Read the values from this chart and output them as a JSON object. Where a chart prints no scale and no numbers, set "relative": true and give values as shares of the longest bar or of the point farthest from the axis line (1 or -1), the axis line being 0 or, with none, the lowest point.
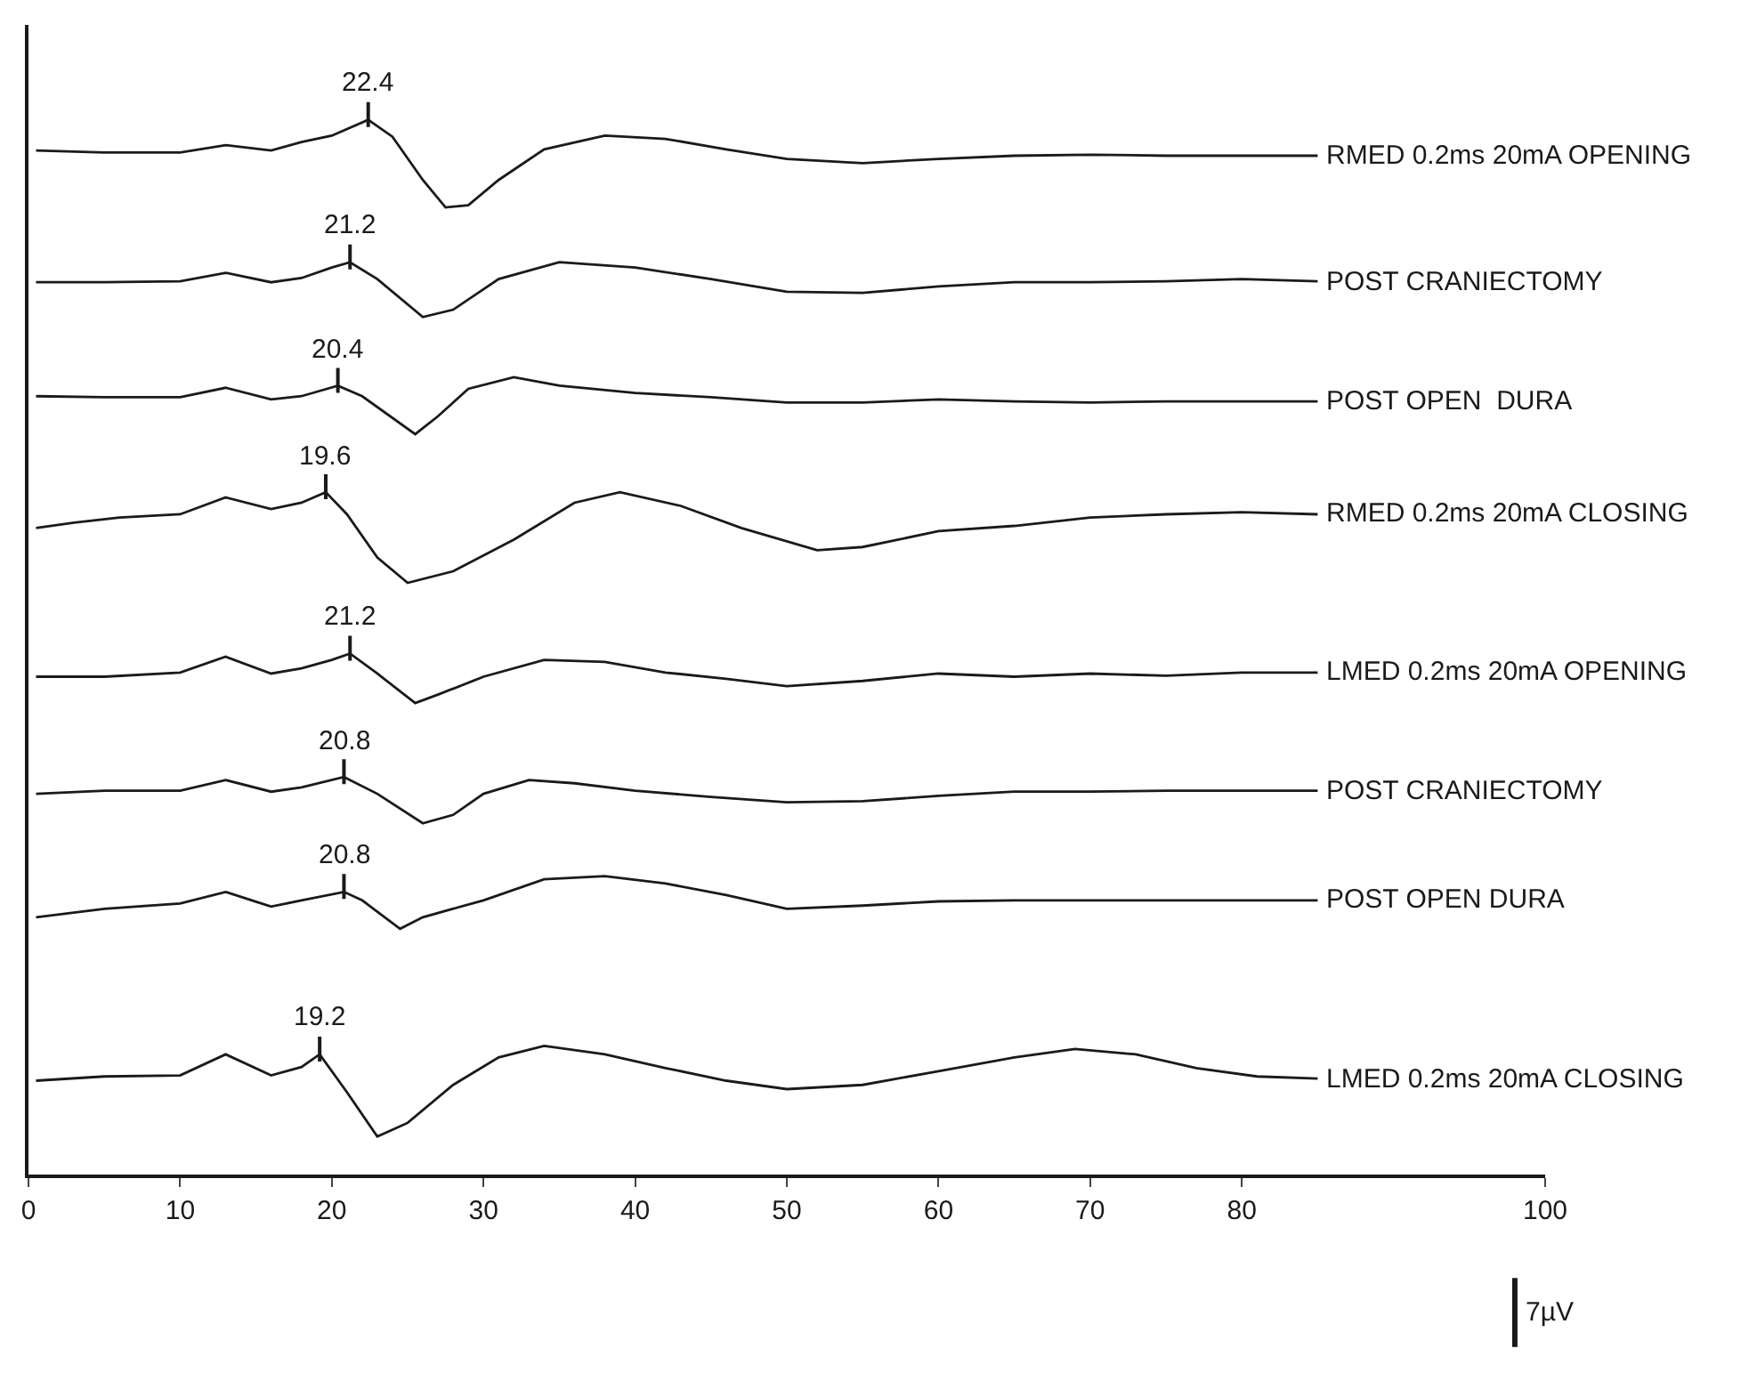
{
  "chart_data": {
    "type": "line",
    "relative": true,
    "xlim": [
      0,
      100
    ],
    "xticks": [
      0,
      10,
      20,
      30,
      40,
      50,
      60,
      70,
      80,
      100
    ],
    "line_style": "solid",
    "series": [
      {
        "name": "RMED 0.2ms 20mA OPENING",
        "color": "#1a1a1a",
        "x": [
          0.5,
          5,
          10,
          13,
          16,
          18,
          20,
          22.4,
          24,
          26,
          27.5,
          29,
          31,
          34,
          38,
          42,
          46,
          50,
          55,
          60,
          65,
          70,
          75,
          80,
          85
        ],
        "values": [
          0.971,
          0.969,
          0.969,
          0.976,
          0.971,
          0.979,
          0.985,
          1,
          0.984,
          0.943,
          0.917,
          0.919,
          0.943,
          0.972,
          0.985,
          0.982,
          0.972,
          0.963,
          0.959,
          0.963,
          0.966,
          0.967,
          0.966,
          0.966,
          0.966
        ]
      },
      {
        "name": "POST CRANIECTOMY",
        "color": "#1a1a1a",
        "x": [
          0.5,
          5,
          10,
          13,
          16,
          18,
          20,
          21.2,
          23,
          26,
          28,
          31,
          35,
          40,
          45,
          50,
          55,
          60,
          65,
          70,
          75,
          80,
          85
        ],
        "values": [
          0.846,
          0.846,
          0.847,
          0.855,
          0.846,
          0.85,
          0.86,
          0.865,
          0.849,
          0.813,
          0.82,
          0.849,
          0.865,
          0.86,
          0.849,
          0.837,
          0.836,
          0.842,
          0.846,
          0.846,
          0.847,
          0.849,
          0.847
        ]
      },
      {
        "name": "POST OPEN  DURA",
        "color": "#1a1a1a",
        "x": [
          0.5,
          5,
          10,
          13,
          16,
          18,
          20.4,
          22,
          25.5,
          27,
          29,
          32,
          35,
          40,
          45,
          50,
          55,
          60,
          65,
          70,
          75,
          80,
          85
        ],
        "values": [
          0.738,
          0.737,
          0.737,
          0.746,
          0.735,
          0.738,
          0.748,
          0.738,
          0.702,
          0.719,
          0.745,
          0.756,
          0.748,
          0.741,
          0.737,
          0.732,
          0.732,
          0.735,
          0.733,
          0.732,
          0.733,
          0.733,
          0.733
        ]
      },
      {
        "name": "RMED 0.2ms 20mA CLOSING",
        "color": "#1a1a1a",
        "x": [
          0.5,
          3,
          6,
          10,
          13,
          16,
          18,
          19.6,
          21,
          23,
          25,
          28,
          32,
          36,
          39,
          43,
          47,
          52,
          55,
          60,
          65,
          70,
          75,
          80,
          85
        ],
        "values": [
          0.613,
          0.618,
          0.623,
          0.626,
          0.642,
          0.631,
          0.637,
          0.647,
          0.626,
          0.585,
          0.561,
          0.572,
          0.602,
          0.637,
          0.647,
          0.634,
          0.613,
          0.592,
          0.595,
          0.61,
          0.615,
          0.623,
          0.626,
          0.628,
          0.626
        ]
      },
      {
        "name": "LMED 0.2ms 20mA OPENING",
        "color": "#1a1a1a",
        "x": [
          0.5,
          5,
          10,
          13,
          16,
          18,
          20,
          21.2,
          23,
          25.5,
          27,
          30,
          34,
          38,
          42,
          46,
          50,
          55,
          60,
          65,
          70,
          75,
          80,
          85
        ],
        "values": [
          0.472,
          0.472,
          0.476,
          0.491,
          0.475,
          0.48,
          0.488,
          0.494,
          0.475,
          0.447,
          0.455,
          0.472,
          0.488,
          0.486,
          0.476,
          0.47,
          0.463,
          0.468,
          0.475,
          0.472,
          0.475,
          0.473,
          0.476,
          0.476
        ]
      },
      {
        "name": "POST CRANIECTOMY",
        "color": "#1a1a1a",
        "x": [
          0.5,
          5,
          10,
          13,
          16,
          18,
          20.8,
          23,
          26,
          28,
          30,
          33,
          36,
          40,
          45,
          50,
          55,
          60,
          65,
          70,
          75,
          80,
          85
        ],
        "values": [
          0.361,
          0.364,
          0.364,
          0.374,
          0.363,
          0.367,
          0.377,
          0.361,
          0.333,
          0.341,
          0.361,
          0.374,
          0.371,
          0.364,
          0.358,
          0.353,
          0.354,
          0.359,
          0.363,
          0.363,
          0.364,
          0.364,
          0.364
        ]
      },
      {
        "name": "POST OPEN DURA",
        "color": "#1a1a1a",
        "x": [
          0.5,
          5,
          10,
          13,
          16,
          18,
          20.8,
          22,
          24.5,
          26,
          30,
          34,
          38,
          42,
          46,
          50,
          55,
          60,
          65,
          70,
          75,
          80,
          85
        ],
        "values": [
          0.244,
          0.252,
          0.257,
          0.268,
          0.254,
          0.26,
          0.268,
          0.26,
          0.233,
          0.244,
          0.26,
          0.28,
          0.283,
          0.276,
          0.265,
          0.252,
          0.255,
          0.259,
          0.26,
          0.26,
          0.26,
          0.26,
          0.26
        ]
      },
      {
        "name": "LMED 0.2ms 20mA CLOSING",
        "color": "#1a1a1a",
        "x": [
          0.5,
          5,
          10,
          13,
          16,
          18,
          19.2,
          21,
          23,
          25,
          28,
          31,
          34,
          38,
          42,
          46,
          50,
          55,
          60,
          65,
          69,
          73,
          77,
          81,
          85
        ],
        "values": [
          0.089,
          0.093,
          0.094,
          0.114,
          0.094,
          0.102,
          0.114,
          0.078,
          0.036,
          0.049,
          0.085,
          0.111,
          0.122,
          0.114,
          0.101,
          0.089,
          0.081,
          0.085,
          0.098,
          0.111,
          0.119,
          0.114,
          0.101,
          0.093,
          0.091
        ]
      }
    ],
    "annotations": [
      {
        "text": "22.4",
        "x": 22.4,
        "y": 1
      },
      {
        "text": "21.2",
        "x": 21.2,
        "y": 0.865
      },
      {
        "text": "20.4",
        "x": 20.4,
        "y": 0.748
      },
      {
        "text": "19.6",
        "x": 19.6,
        "y": 0.647
      },
      {
        "text": "21.2",
        "x": 21.2,
        "y": 0.494
      },
      {
        "text": "20.8",
        "x": 20.8,
        "y": 0.377
      },
      {
        "text": "20.8",
        "x": 20.8,
        "y": 0.268
      },
      {
        "text": "19.2",
        "x": 19.2,
        "y": 0.114
      },
      "7µV"
    ]
  }
}
